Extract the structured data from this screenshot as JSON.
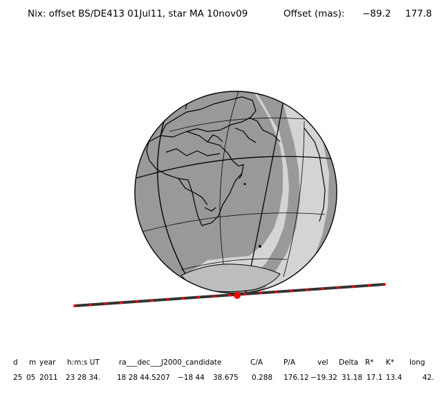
{
  "header": {
    "title": "Nix: offset BS/DE413 01Jul11, star MA 10nov09",
    "offset_label": "Offset (mas):",
    "offset_x": "−89.2",
    "offset_y": "177.8"
  },
  "plot": {
    "globe_face_color": "#999999",
    "globe_day_color": "#d4d4d4",
    "track_color": "#333333",
    "marker_color": "#ff0000",
    "track_dot_count": 21
  },
  "table": {
    "headers": [
      "d",
      "m",
      "year",
      "h:m:s UT",
      "ra___dec___J2000_candidate",
      "C/A",
      "P/A",
      "vel",
      "Delta",
      "R*",
      "K*",
      "long"
    ],
    "values": [
      "25",
      "05",
      "2011",
      "23 28 34.",
      "18 28 44.5207",
      "−18 44",
      "38.675",
      "0.288",
      "176.12",
      "−19.32",
      "31.18",
      "17.1",
      "13.4",
      "42."
    ]
  }
}
